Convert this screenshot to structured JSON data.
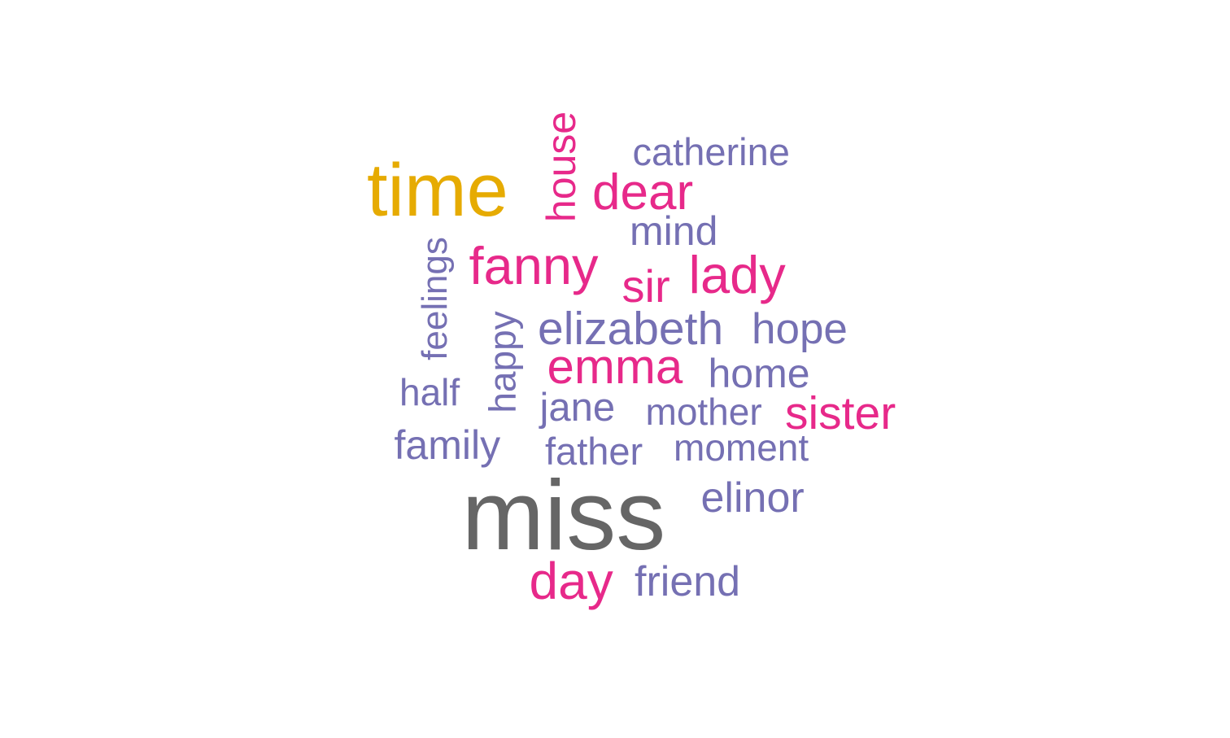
{
  "palette": {
    "top": "#666666",
    "second": "#e6ab02",
    "tier_pink": "#e7298a",
    "tier_purple": "#7570b3"
  },
  "words": [
    {
      "text": "miss",
      "tier": "top"
    },
    {
      "text": "time",
      "tier": "second"
    },
    {
      "text": "house",
      "tier": "tier_pink",
      "rotated": true
    },
    {
      "text": "catherine",
      "tier": "tier_purple"
    },
    {
      "text": "dear",
      "tier": "tier_pink"
    },
    {
      "text": "mind",
      "tier": "tier_purple"
    },
    {
      "text": "feelings",
      "tier": "tier_purple",
      "rotated": true
    },
    {
      "text": "fanny",
      "tier": "tier_pink"
    },
    {
      "text": "sir",
      "tier": "tier_pink"
    },
    {
      "text": "lady",
      "tier": "tier_pink"
    },
    {
      "text": "happy",
      "tier": "tier_purple",
      "rotated": true
    },
    {
      "text": "elizabeth",
      "tier": "tier_purple"
    },
    {
      "text": "hope",
      "tier": "tier_purple"
    },
    {
      "text": "emma",
      "tier": "tier_pink"
    },
    {
      "text": "home",
      "tier": "tier_purple"
    },
    {
      "text": "half",
      "tier": "tier_purple"
    },
    {
      "text": "jane",
      "tier": "tier_purple"
    },
    {
      "text": "mother",
      "tier": "tier_purple"
    },
    {
      "text": "sister",
      "tier": "tier_pink"
    },
    {
      "text": "family",
      "tier": "tier_purple"
    },
    {
      "text": "father",
      "tier": "tier_purple"
    },
    {
      "text": "moment",
      "tier": "tier_purple"
    },
    {
      "text": "elinor",
      "tier": "tier_purple"
    },
    {
      "text": "day",
      "tier": "tier_pink"
    },
    {
      "text": "friend",
      "tier": "tier_purple"
    }
  ]
}
